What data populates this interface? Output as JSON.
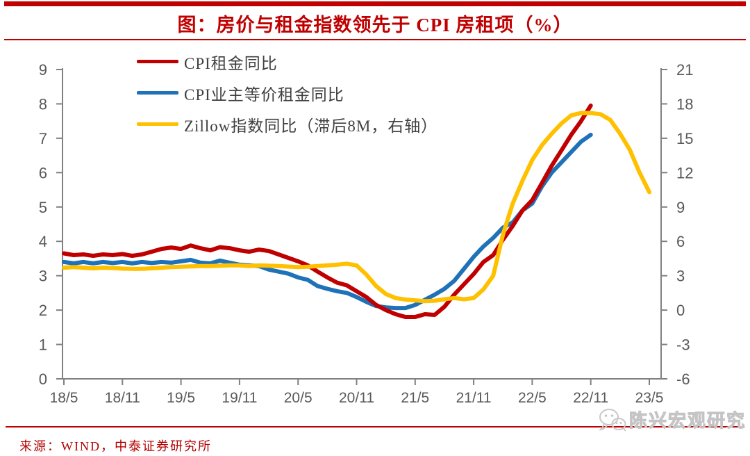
{
  "header": {
    "title": "图：房价与租金指数领先于 CPI 房租项（%）"
  },
  "chart_data": {
    "type": "line",
    "title": "图：房价与租金指数领先于 CPI 房租项（%）",
    "grid": false,
    "legend_position": "top-left",
    "x_start": "2018/5",
    "x_end": "2023/5",
    "x_frequency": "monthly",
    "x_tick_labels": [
      "18/5",
      "18/11",
      "19/5",
      "19/11",
      "20/5",
      "20/11",
      "21/5",
      "21/11",
      "22/5",
      "22/11",
      "23/5"
    ],
    "months_per_tick": 6,
    "left_axis": {
      "min": 0,
      "max": 9,
      "ticks": [
        0,
        1,
        2,
        3,
        4,
        5,
        6,
        7,
        8,
        9
      ]
    },
    "right_axis": {
      "min": -6,
      "max": 21,
      "ticks": [
        -6,
        -3,
        0,
        3,
        6,
        9,
        12,
        15,
        18,
        21
      ]
    },
    "series": [
      {
        "name": "CPI租金同比",
        "axis": "left",
        "color": "#C00000",
        "values": [
          3.65,
          3.6,
          3.62,
          3.58,
          3.62,
          3.6,
          3.63,
          3.58,
          3.62,
          3.7,
          3.78,
          3.82,
          3.78,
          3.88,
          3.8,
          3.74,
          3.83,
          3.8,
          3.74,
          3.7,
          3.76,
          3.72,
          3.62,
          3.52,
          3.42,
          3.3,
          3.12,
          2.95,
          2.8,
          2.72,
          2.55,
          2.38,
          2.15,
          2.0,
          1.88,
          1.8,
          1.8,
          1.88,
          1.86,
          2.1,
          2.45,
          2.75,
          3.05,
          3.4,
          3.6,
          4.05,
          4.45,
          4.9,
          5.2,
          5.7,
          6.2,
          6.65,
          7.1,
          7.5,
          7.95
        ]
      },
      {
        "name": "CPI业主等价租金同比",
        "axis": "left",
        "color": "#1F72B8",
        "values": [
          3.4,
          3.36,
          3.4,
          3.36,
          3.4,
          3.37,
          3.4,
          3.36,
          3.4,
          3.37,
          3.4,
          3.38,
          3.42,
          3.46,
          3.38,
          3.36,
          3.44,
          3.38,
          3.32,
          3.3,
          3.28,
          3.18,
          3.12,
          3.06,
          2.95,
          2.88,
          2.7,
          2.62,
          2.55,
          2.5,
          2.38,
          2.24,
          2.12,
          2.08,
          2.06,
          2.06,
          2.15,
          2.3,
          2.45,
          2.62,
          2.85,
          3.2,
          3.55,
          3.85,
          4.1,
          4.4,
          4.55,
          4.9,
          5.1,
          5.6,
          6.0,
          6.3,
          6.6,
          6.9,
          7.1
        ]
      },
      {
        "name": "Zillow指数同比（滞后8M，右轴）",
        "axis": "right",
        "color": "#FFC000",
        "values": [
          3.7,
          3.75,
          3.7,
          3.65,
          3.7,
          3.68,
          3.62,
          3.6,
          3.6,
          3.65,
          3.7,
          3.75,
          3.78,
          3.82,
          3.84,
          3.84,
          3.88,
          3.9,
          3.9,
          3.85,
          3.9,
          3.88,
          3.84,
          3.8,
          3.75,
          3.78,
          3.84,
          3.9,
          3.96,
          4.05,
          3.9,
          3.1,
          2.1,
          1.4,
          1.05,
          0.92,
          0.85,
          0.78,
          0.82,
          0.95,
          1.05,
          0.95,
          1.05,
          1.8,
          3.0,
          6.6,
          9.3,
          11.3,
          13.1,
          14.4,
          15.4,
          16.3,
          17.0,
          17.2,
          17.2,
          17.1,
          16.6,
          15.4,
          14.0,
          12.0,
          10.3
        ]
      }
    ]
  },
  "footer": {
    "source": "来源：WIND，中泰证券研究所",
    "watermark": "陈兴宏观研究"
  },
  "colors": {
    "accent_red": "#C00000",
    "series_red": "#C00000",
    "series_blue": "#1F72B8",
    "series_yellow": "#FFC000",
    "axis_line": "#808080",
    "axis_label": "#595959",
    "legend_text": "#404040",
    "watermark_gray": "#C4C4C4"
  }
}
